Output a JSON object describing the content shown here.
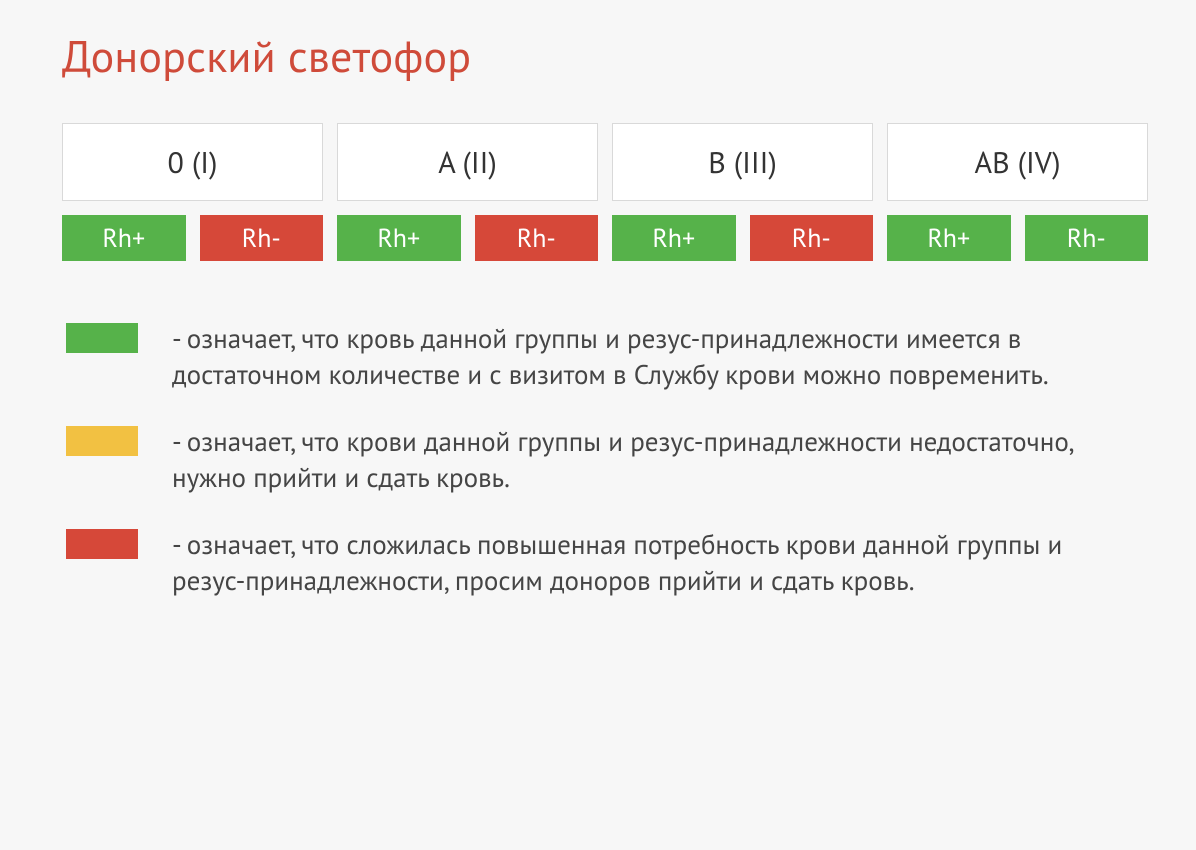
{
  "title": "Донорский светофор",
  "title_color": "#cf4b3a",
  "background_color": "#f7f7f7",
  "card_background": "#ffffff",
  "card_border": "#d9d9d9",
  "text_color": "#454545",
  "colors": {
    "green": "#56b24a",
    "yellow": "#f2c142",
    "red": "#d64839"
  },
  "groups": [
    {
      "label": "0 (I)",
      "rh_plus_color": "#56b24a",
      "rh_minus_color": "#d64839"
    },
    {
      "label": "A (II)",
      "rh_plus_color": "#56b24a",
      "rh_minus_color": "#d64839"
    },
    {
      "label": "B (III)",
      "rh_plus_color": "#56b24a",
      "rh_minus_color": "#d64839"
    },
    {
      "label": "AB (IV)",
      "rh_plus_color": "#56b24a",
      "rh_minus_color": "#56b24a"
    }
  ],
  "rh_labels": {
    "plus": "Rh+",
    "minus": "Rh-"
  },
  "legend": [
    {
      "color": "#56b24a",
      "text": "- означает, что кровь данной группы и резус-принадлежности имеется в достаточном количестве и с визитом в Службу крови можно повременить."
    },
    {
      "color": "#f2c142",
      "text": "- означает, что крови данной группы и резус-принадлежности недостаточно, нужно прийти и сдать кровь."
    },
    {
      "color": "#d64839",
      "text": "- означает, что сложилась повышенная потребность крови данной группы и резус-принадлежности, просим доноров прийти и сдать кровь."
    }
  ]
}
